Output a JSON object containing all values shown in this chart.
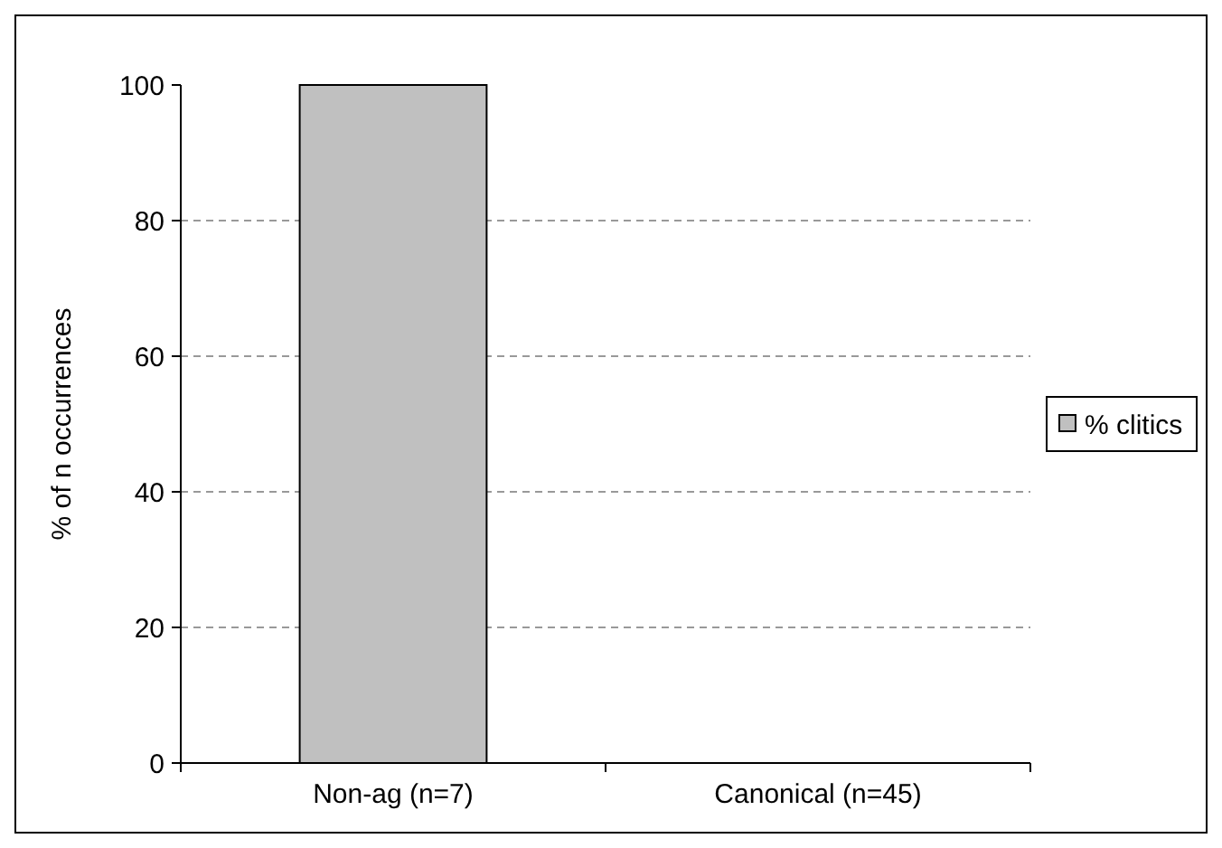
{
  "chart_data": {
    "type": "bar",
    "ylabel": "% of n occurrences",
    "categories": [
      "Non-ag (n=7)",
      "Canonical (n=45)"
    ],
    "series": [
      {
        "name": "% clitics",
        "color": "#c0c0c0",
        "values": [
          100,
          0
        ]
      }
    ],
    "ylim": [
      0,
      100
    ],
    "yticks": [
      0,
      20,
      40,
      60,
      80,
      100
    ],
    "grid": "y",
    "legend": "right"
  }
}
